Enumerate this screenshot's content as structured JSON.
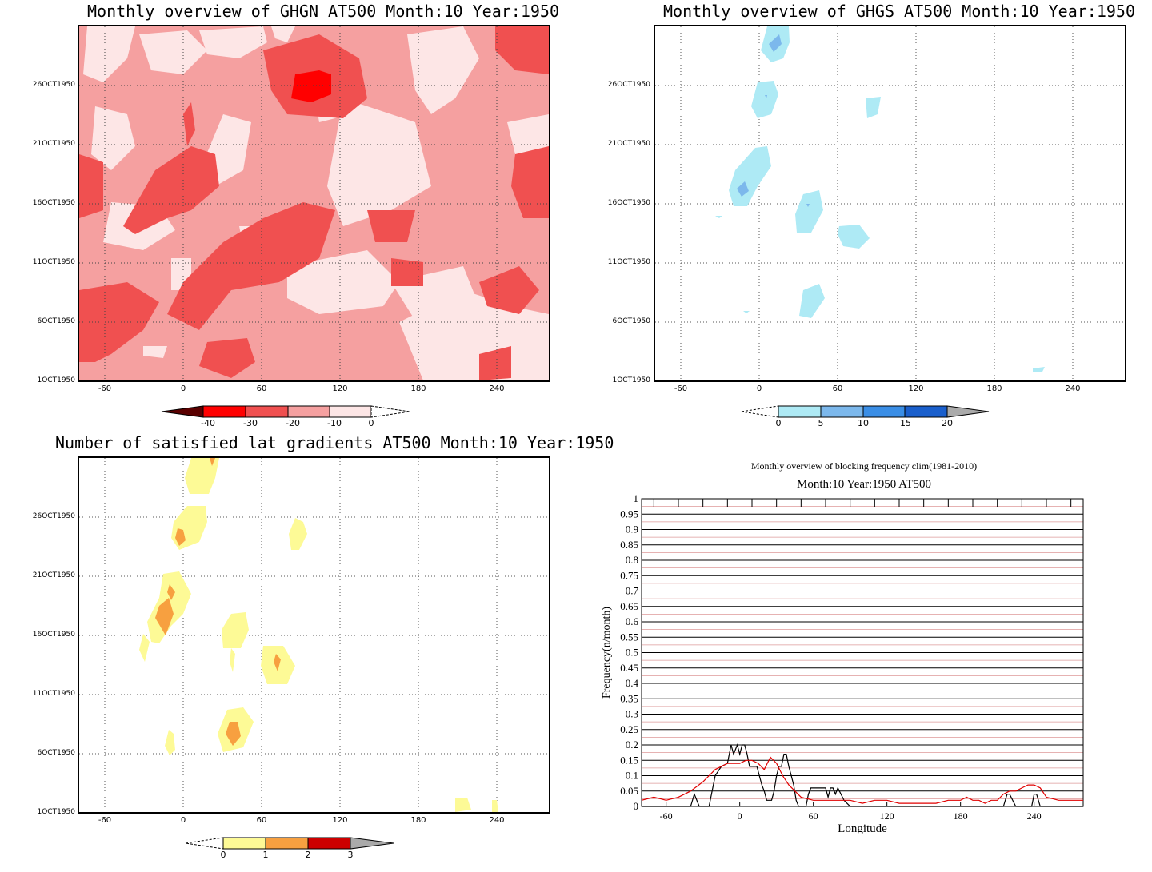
{
  "panels": {
    "ghgn": {
      "title": "Monthly overview of GHGN AT500 Month:10 Year:1950",
      "yticks": [
        "26OCT1950",
        "21OCT1950",
        "16OCT1950",
        "11OCT1950",
        "6OCT1950",
        "1OCT1950"
      ],
      "xticks": [
        "-60",
        "0",
        "60",
        "120",
        "180",
        "240"
      ],
      "colorbar": {
        "labels": [
          "-40",
          "-30",
          "-20",
          "-10",
          "0"
        ],
        "colors": [
          "#5a0000",
          "#ff0000",
          "#f05050",
          "#f5a0a0",
          "#fde6e6"
        ]
      }
    },
    "ghgs": {
      "title": "Monthly overview of GHGS AT500 Month:10 Year:1950",
      "yticks": [
        "26OCT1950",
        "21OCT1950",
        "16OCT1950",
        "11OCT1950",
        "6OCT1950",
        "1OCT1950"
      ],
      "xticks": [
        "-60",
        "0",
        "60",
        "120",
        "180",
        "240"
      ],
      "colorbar": {
        "labels": [
          "0",
          "5",
          "10",
          "15",
          "20"
        ],
        "colors": [
          "#aeeaf5",
          "#7cb8ec",
          "#3a8ee6",
          "#1a5fcc",
          "#aaaaaa"
        ]
      }
    },
    "lat": {
      "title": "Number of satisfied lat gradients AT500 Month:10 Year:1950",
      "yticks": [
        "26OCT1950",
        "21OCT1950",
        "16OCT1950",
        "11OCT1950",
        "6OCT1950",
        "1OCT1950"
      ],
      "xticks": [
        "-60",
        "0",
        "60",
        "120",
        "180",
        "240"
      ],
      "colorbar": {
        "labels": [
          "0",
          "1",
          "2",
          "3"
        ],
        "colors": [
          "#fdfa96",
          "#f7a040",
          "#cc0000",
          "#aaaaaa"
        ]
      }
    },
    "freq": {
      "title": "Monthly overview of blocking frequency clim(1981-2010)",
      "subtitle": "Month:10 Year:1950  AT500",
      "ylabel": "Frequency(n/month)",
      "xlabel": "Longitude"
    }
  },
  "chart_data": [
    {
      "type": "heatmap",
      "title": "Monthly overview of GHGN AT500 Month:10 Year:1950",
      "x_ticks": [
        -60,
        0,
        60,
        120,
        180,
        240
      ],
      "y_ticks": [
        "1OCT1950",
        "6OCT1950",
        "11OCT1950",
        "16OCT1950",
        "21OCT1950",
        "26OCT1950"
      ],
      "colorbar_levels": [
        -40,
        -30,
        -20,
        -10,
        0
      ]
    },
    {
      "type": "heatmap",
      "title": "Monthly overview of GHGS AT500 Month:10 Year:1950",
      "x_ticks": [
        -60,
        0,
        60,
        120,
        180,
        240
      ],
      "y_ticks": [
        "1OCT1950",
        "6OCT1950",
        "11OCT1950",
        "16OCT1950",
        "21OCT1950",
        "26OCT1950"
      ],
      "colorbar_levels": [
        0,
        5,
        10,
        15,
        20
      ]
    },
    {
      "type": "heatmap",
      "title": "Number of satisfied lat gradients AT500 Month:10 Year:1950",
      "x_ticks": [
        -60,
        0,
        60,
        120,
        180,
        240
      ],
      "y_ticks": [
        "1OCT1950",
        "6OCT1950",
        "11OCT1950",
        "16OCT1950",
        "21OCT1950",
        "26OCT1950"
      ],
      "colorbar_levels": [
        0,
        1,
        2,
        3
      ]
    },
    {
      "type": "line",
      "title": "Monthly overview of blocking frequency clim(1981-2010)",
      "subtitle": "Month:10 Year:1950  AT500",
      "xlabel": "Longitude",
      "ylabel": "Frequency(n/month)",
      "xlim": [
        -80,
        280
      ],
      "ylim": [
        0,
        1
      ],
      "x_ticks": [
        -60,
        0,
        60,
        120,
        180,
        240
      ],
      "y_ticks": [
        0,
        0.05,
        0.1,
        0.15,
        0.2,
        0.25,
        0.3,
        0.35,
        0.4,
        0.45,
        0.5,
        0.55,
        0.6,
        0.65,
        0.7,
        0.75,
        0.8,
        0.85,
        0.9,
        0.95,
        1
      ],
      "series": [
        {
          "color": "#000000",
          "x": [
            -80,
            -40,
            -37,
            -33,
            -30,
            -25,
            -20,
            -15,
            -10,
            -7,
            -5,
            -2,
            0,
            2,
            4,
            6,
            8,
            10,
            12,
            14,
            16,
            18,
            20,
            22,
            24,
            26,
            28,
            30,
            32,
            34,
            36,
            38,
            40,
            42,
            44,
            46,
            48,
            50,
            52,
            54,
            56,
            58,
            60,
            62,
            64,
            66,
            68,
            70,
            72,
            74,
            76,
            78,
            80,
            85,
            90,
            200,
            205,
            210,
            215,
            218,
            220,
            225,
            230,
            235,
            238,
            240,
            242,
            245,
            280
          ],
          "y": [
            0,
            0,
            0.04,
            0,
            0,
            0,
            0.1,
            0.13,
            0.14,
            0.2,
            0.17,
            0.2,
            0.17,
            0.2,
            0.2,
            0.17,
            0.13,
            0.13,
            0.13,
            0.13,
            0.1,
            0.07,
            0.05,
            0.02,
            0.02,
            0.02,
            0.05,
            0.1,
            0.13,
            0.13,
            0.17,
            0.17,
            0.13,
            0.1,
            0.07,
            0.02,
            0,
            0,
            0,
            0,
            0.04,
            0.06,
            0.06,
            0.06,
            0.06,
            0.06,
            0.06,
            0.06,
            0.03,
            0.06,
            0.06,
            0.04,
            0.06,
            0.02,
            0,
            0,
            0,
            0,
            0,
            0.04,
            0.04,
            0,
            0,
            0,
            0,
            0.04,
            0.04,
            0,
            0
          ]
        },
        {
          "color": "#e00000",
          "x": [
            -80,
            -70,
            -60,
            -50,
            -40,
            -30,
            -20,
            -10,
            0,
            5,
            10,
            15,
            20,
            25,
            30,
            35,
            40,
            45,
            50,
            60,
            70,
            80,
            90,
            100,
            110,
            120,
            130,
            140,
            150,
            160,
            170,
            180,
            185,
            190,
            195,
            200,
            205,
            210,
            215,
            220,
            225,
            230,
            235,
            240,
            245,
            250,
            260,
            270,
            280
          ],
          "y": [
            0.02,
            0.03,
            0.02,
            0.03,
            0.05,
            0.08,
            0.12,
            0.14,
            0.14,
            0.15,
            0.15,
            0.14,
            0.12,
            0.16,
            0.14,
            0.1,
            0.07,
            0.05,
            0.03,
            0.02,
            0.02,
            0.02,
            0.02,
            0.01,
            0.02,
            0.02,
            0.01,
            0.01,
            0.01,
            0.01,
            0.02,
            0.02,
            0.03,
            0.02,
            0.02,
            0.01,
            0.02,
            0.02,
            0.04,
            0.05,
            0.05,
            0.06,
            0.07,
            0.07,
            0.06,
            0.03,
            0.02,
            0.02,
            0.02
          ]
        }
      ]
    }
  ]
}
